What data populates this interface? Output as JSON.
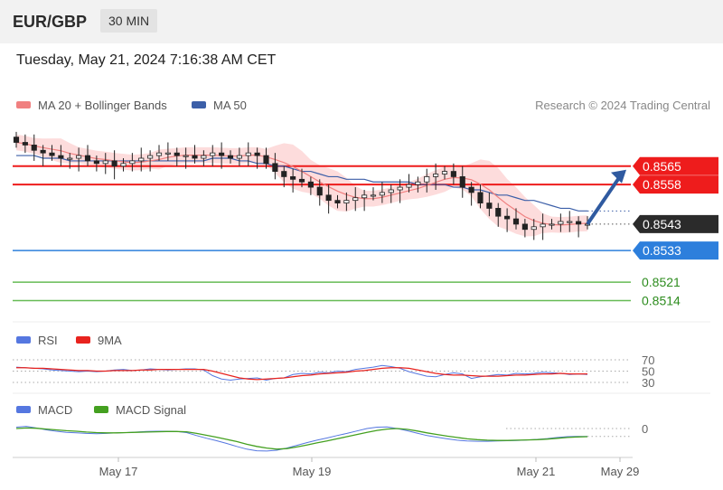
{
  "header": {
    "pair": "EUR/GBP",
    "timeframe": "30 MIN"
  },
  "timestamp": "Tuesday, May 21, 2024 7:16:38 AM CET",
  "colors": {
    "resistance": "#ee1c1c",
    "support": "#2d7fdc",
    "target": "#66bb55",
    "ma20": "#f08080",
    "ma50": "#3c5fa8",
    "bb": "#fdd6d6",
    "rsi": "#5577e0",
    "macd_signal": "#44a020"
  },
  "chart_data": [
    {
      "type": "candlestick",
      "legend": [
        "MA 20 + Bollinger Bands",
        "MA 50"
      ],
      "legend_placement": "top-left",
      "attribution": "Research © 2024 Trading Central",
      "x_ticks": [
        "May 17",
        "May 19",
        "May 21",
        "May 29"
      ],
      "ylim": [
        0.8508,
        0.858
      ],
      "current_price": 0.8543,
      "levels": [
        {
          "label": "0.8565",
          "value": 0.8565,
          "type": "resistance"
        },
        {
          "label": "0.8558",
          "value": 0.8558,
          "type": "resistance"
        },
        {
          "label": "0.8543",
          "value": 0.8543,
          "type": "current"
        },
        {
          "label": "0.8533",
          "value": 0.8533,
          "type": "support"
        },
        {
          "label": "0.8521",
          "value": 0.8521,
          "type": "target"
        },
        {
          "label": "0.8514",
          "value": 0.8514,
          "type": "target"
        }
      ],
      "close": [
        0.8574,
        0.8573,
        0.8571,
        0.857,
        0.8569,
        0.8568,
        0.8568,
        0.8569,
        0.8567,
        0.8566,
        0.8567,
        0.8565,
        0.8566,
        0.8567,
        0.8568,
        0.8569,
        0.857,
        0.857,
        0.8569,
        0.8569,
        0.8568,
        0.8569,
        0.857,
        0.8569,
        0.8568,
        0.8569,
        0.857,
        0.8569,
        0.8566,
        0.8563,
        0.8561,
        0.856,
        0.8559,
        0.8557,
        0.8554,
        0.8552,
        0.8551,
        0.8552,
        0.8553,
        0.8554,
        0.8554,
        0.8555,
        0.8556,
        0.8557,
        0.8558,
        0.8559,
        0.8561,
        0.8562,
        0.8563,
        0.8561,
        0.8557,
        0.8555,
        0.8551,
        0.8549,
        0.8546,
        0.8545,
        0.8543,
        0.8541,
        0.8542,
        0.8543,
        0.8543,
        0.8544,
        0.8544,
        0.8543,
        0.8543
      ],
      "ma50": [
        0.8569,
        0.8569,
        0.8569,
        0.8568,
        0.8568,
        0.8568,
        0.8567,
        0.8567,
        0.8567,
        0.8567,
        0.8567,
        0.8567,
        0.8567,
        0.8567,
        0.8567,
        0.8567,
        0.8567,
        0.8567,
        0.8567,
        0.8567,
        0.8567,
        0.8567,
        0.8568,
        0.8568,
        0.8568,
        0.8567,
        0.8567,
        0.8566,
        0.8566,
        0.8565,
        0.8565,
        0.8564,
        0.8563,
        0.8563,
        0.8562,
        0.8561,
        0.8561,
        0.856,
        0.856,
        0.856,
        0.8559,
        0.8559,
        0.8559,
        0.8559,
        0.8559,
        0.8558,
        0.8558,
        0.8558,
        0.8558,
        0.8557,
        0.8557,
        0.8556,
        0.8556,
        0.8555,
        0.8554,
        0.8554,
        0.8553,
        0.8552,
        0.8552,
        0.8551,
        0.855,
        0.8549,
        0.8549,
        0.8548,
        0.8548
      ]
    },
    {
      "type": "line",
      "legend": [
        "RSI",
        "9MA"
      ],
      "y_ticks": [
        "70",
        "50",
        "30"
      ],
      "ylim": [
        20,
        80
      ],
      "rsi": [
        57,
        56,
        55,
        54,
        52,
        51,
        50,
        49,
        50,
        49,
        50,
        52,
        53,
        51,
        52,
        54,
        53,
        52,
        53,
        54,
        54,
        52,
        42,
        36,
        34,
        36,
        37,
        38,
        34,
        37,
        38,
        44,
        46,
        45,
        48,
        47,
        50,
        49,
        53,
        55,
        57,
        60,
        58,
        55,
        49,
        45,
        41,
        40,
        44,
        47,
        45,
        37,
        40,
        42,
        44,
        43,
        46,
        45,
        46,
        48,
        47,
        46,
        44,
        45,
        44
      ],
      "ma9": [
        56,
        56,
        55,
        55,
        54,
        53,
        52,
        51,
        51,
        50,
        50,
        51,
        51,
        51,
        52,
        52,
        53,
        53,
        53,
        53,
        53,
        53,
        50,
        46,
        42,
        38,
        36,
        35,
        36,
        37,
        38,
        40,
        42,
        43,
        45,
        46,
        47,
        48,
        50,
        51,
        53,
        55,
        56,
        56,
        55,
        52,
        49,
        46,
        44,
        43,
        43,
        42,
        41,
        41,
        41,
        42,
        43,
        43,
        44,
        45,
        45,
        46,
        45,
        45,
        45
      ]
    },
    {
      "type": "line",
      "legend": [
        "MACD",
        "MACD Signal"
      ],
      "y_ticks": [
        "0"
      ],
      "ylim": [
        -1,
        1
      ],
      "macd": [
        0.05,
        0.08,
        0.02,
        -0.05,
        -0.1,
        -0.14,
        -0.16,
        -0.18,
        -0.19,
        -0.18,
        -0.16,
        -0.15,
        -0.13,
        -0.11,
        -0.1,
        -0.1,
        -0.11,
        -0.15,
        -0.26,
        -0.36,
        -0.45,
        -0.55,
        -0.66,
        -0.76,
        -0.82,
        -0.83,
        -0.8,
        -0.72,
        -0.62,
        -0.52,
        -0.43,
        -0.35,
        -0.26,
        -0.18,
        -0.09,
        0.0,
        0.05,
        0.06,
        0.0,
        -0.08,
        -0.17,
        -0.26,
        -0.32,
        -0.38,
        -0.43,
        -0.46,
        -0.47,
        -0.47,
        -0.46,
        -0.45,
        -0.44,
        -0.42,
        -0.4,
        -0.37,
        -0.33,
        -0.3,
        -0.29,
        -0.29
      ],
      "signal": [
        0.0,
        0.02,
        0.01,
        -0.02,
        -0.05,
        -0.08,
        -0.1,
        -0.13,
        -0.15,
        -0.16,
        -0.16,
        -0.15,
        -0.14,
        -0.13,
        -0.12,
        -0.11,
        -0.11,
        -0.12,
        -0.18,
        -0.25,
        -0.32,
        -0.4,
        -0.48,
        -0.58,
        -0.66,
        -0.72,
        -0.76,
        -0.74,
        -0.68,
        -0.61,
        -0.53,
        -0.46,
        -0.38,
        -0.3,
        -0.22,
        -0.14,
        -0.07,
        -0.02,
        0.0,
        -0.03,
        -0.09,
        -0.16,
        -0.22,
        -0.28,
        -0.33,
        -0.38,
        -0.41,
        -0.43,
        -0.44,
        -0.44,
        -0.43,
        -0.42,
        -0.41,
        -0.39,
        -0.36,
        -0.33,
        -0.31,
        -0.3
      ]
    }
  ]
}
